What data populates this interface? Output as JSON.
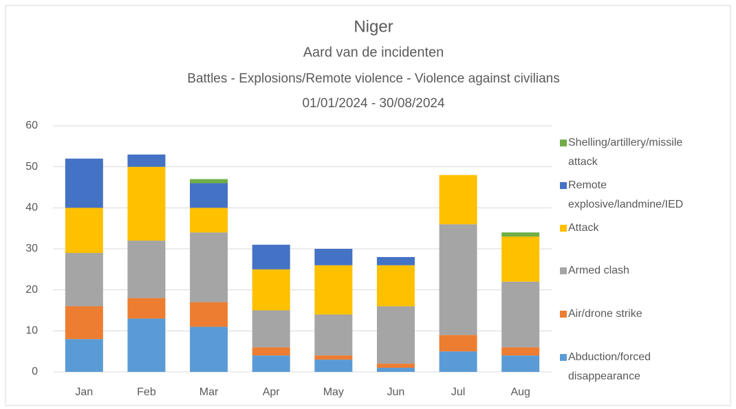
{
  "chart_data": {
    "type": "stacked_bar",
    "title": "Niger",
    "subtitle": "Aard van de incidenten",
    "subtitle2": "Battles - Explosions/Remote violence - Violence against civilians",
    "date_range": "01/01/2024 - 30/08/2024",
    "categories": [
      "Jan",
      "Feb",
      "Mar",
      "Apr",
      "May",
      "Jun",
      "Jul",
      "Aug"
    ],
    "series": [
      {
        "name": "Abduction/forced disappearance",
        "color": "#5b9bd5",
        "values": [
          8,
          13,
          11,
          4,
          3,
          1,
          5,
          4
        ]
      },
      {
        "name": "Air/drone strike",
        "color": "#ed7d31",
        "values": [
          8,
          5,
          6,
          2,
          1,
          1,
          4,
          2
        ]
      },
      {
        "name": "Armed clash",
        "color": "#a5a5a5",
        "values": [
          13,
          14,
          17,
          9,
          10,
          14,
          27,
          16
        ]
      },
      {
        "name": "Attack",
        "color": "#ffc000",
        "values": [
          11,
          18,
          6,
          10,
          12,
          10,
          12,
          11
        ]
      },
      {
        "name": "Remote explosive/landmine/IED",
        "color": "#4472c4",
        "values": [
          12,
          3,
          6,
          6,
          4,
          2,
          0,
          0
        ]
      },
      {
        "name": "Shelling/artillery/missile attack",
        "color": "#70ad47",
        "values": [
          0,
          0,
          1,
          0,
          0,
          0,
          0,
          1
        ]
      }
    ],
    "ylim": [
      0,
      60
    ],
    "yticks": [
      0,
      10,
      20,
      30,
      40,
      50,
      60
    ],
    "grid": true,
    "legend": "right"
  }
}
